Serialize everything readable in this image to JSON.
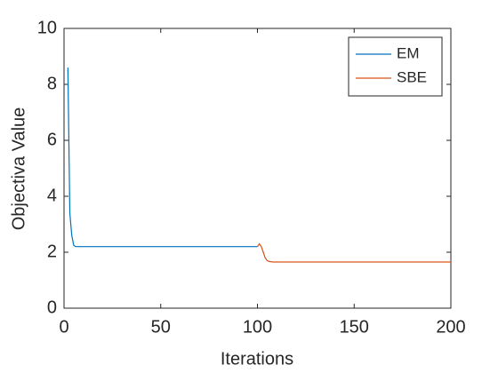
{
  "chart_data": {
    "type": "line",
    "xlabel": "Iterations",
    "ylabel": "Objectiva Value",
    "xlim": [
      0,
      200
    ],
    "xticks": [
      0,
      50,
      100,
      150,
      200
    ],
    "ylim": [
      0,
      10
    ],
    "yticks": [
      0,
      2,
      4,
      6,
      8,
      10
    ],
    "legend": "top-right",
    "series": [
      {
        "name": "EM",
        "color": "#0072BD",
        "x": [
          2,
          3,
          4,
          5,
          6,
          8,
          10,
          20,
          40,
          60,
          80,
          100
        ],
        "values": [
          8.6,
          3.4,
          2.6,
          2.25,
          2.2,
          2.2,
          2.2,
          2.2,
          2.2,
          2.2,
          2.2,
          2.2
        ]
      },
      {
        "name": "SBE",
        "color": "#D95319",
        "x": [
          100,
          101,
          102,
          103,
          104,
          105,
          106,
          108,
          110,
          120,
          150,
          200
        ],
        "values": [
          2.2,
          2.3,
          2.2,
          2.0,
          1.8,
          1.7,
          1.67,
          1.65,
          1.65,
          1.65,
          1.65,
          1.65
        ]
      }
    ]
  }
}
